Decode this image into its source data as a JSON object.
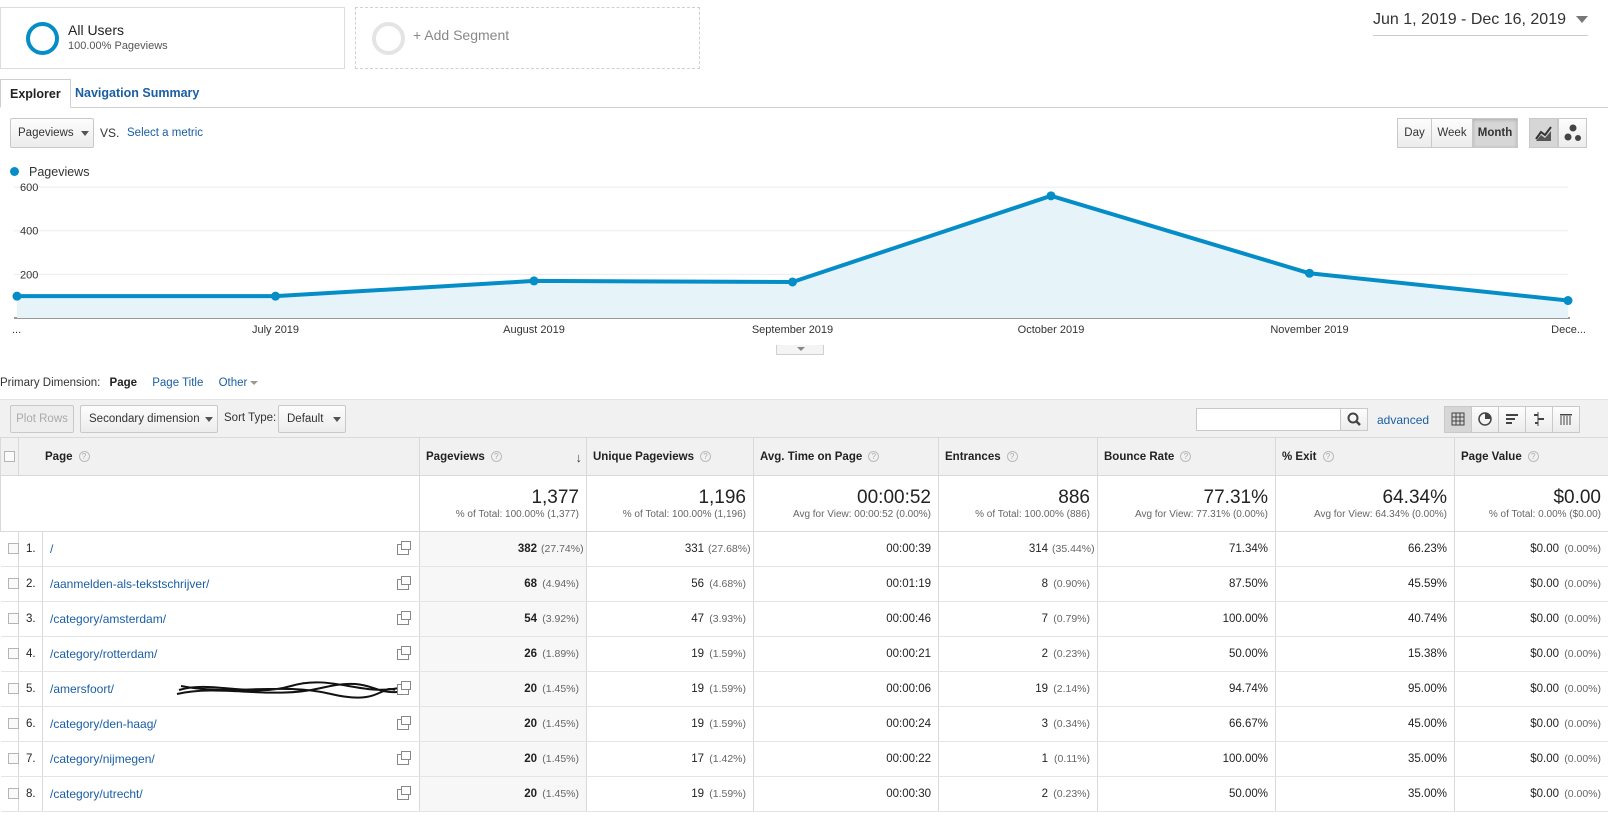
{
  "segments": {
    "all_users": {
      "title": "All Users",
      "subtitle": "100.00% Pageviews"
    },
    "add_segment": {
      "label": "+ Add Segment"
    }
  },
  "date_range": "Jun 1, 2019 - Dec 16, 2019",
  "tabs": [
    {
      "label": "Explorer",
      "active": true
    },
    {
      "label": "Navigation Summary",
      "active": false
    }
  ],
  "metric_selector": {
    "metric": "Pageviews",
    "vs_label": "VS.",
    "select_metric": "Select a metric"
  },
  "period_buttons": [
    {
      "label": "Day"
    },
    {
      "label": "Week"
    },
    {
      "label": "Month",
      "active": true
    }
  ],
  "chart_type_buttons": [
    {
      "icon": "line-chart-icon",
      "active": true
    },
    {
      "icon": "motion-chart-icon"
    }
  ],
  "chart_data": {
    "type": "area",
    "title": "",
    "legend": "Pageviews",
    "color": "#058dc7",
    "x_labels": [
      "...",
      "July 2019",
      "August 2019",
      "September 2019",
      "October 2019",
      "November 2019",
      "Dece..."
    ],
    "series": [
      {
        "name": "Pageviews",
        "values": [
          100,
          100,
          170,
          165,
          560,
          205,
          80
        ]
      }
    ],
    "y_ticks": [
      200,
      400,
      600
    ],
    "ylim": [
      0,
      605
    ],
    "grid": true
  },
  "primary_dimension": {
    "label": "Primary Dimension:",
    "selected": "Page",
    "options": [
      "Page Title",
      "Other"
    ]
  },
  "toolbar": {
    "plot_rows": "Plot Rows",
    "secondary_dimension": "Secondary dimension",
    "sort_label": "Sort Type:",
    "sort_value": "Default",
    "advanced": "advanced",
    "views": [
      "table-view-icon",
      "pie-view-icon",
      "performance-view-icon",
      "comparison-view-icon",
      "pivot-view-icon"
    ]
  },
  "table": {
    "columns": {
      "page": "Page",
      "pageviews": "Pageviews",
      "unique_pageviews": "Unique Pageviews",
      "avg_time": "Avg. Time on Page",
      "entrances": "Entrances",
      "bounce_rate": "Bounce Rate",
      "exit": "% Exit",
      "page_value": "Page Value"
    },
    "totals": {
      "pageviews": {
        "value": "1,377",
        "sub": "% of Total: 100.00% (1,377)"
      },
      "unique_pageviews": {
        "value": "1,196",
        "sub": "% of Total: 100.00% (1,196)"
      },
      "avg_time": {
        "value": "00:00:52",
        "sub": "Avg for View: 00:00:52 (0.00%)"
      },
      "entrances": {
        "value": "886",
        "sub": "% of Total: 100.00% (886)"
      },
      "bounce_rate": {
        "value": "77.31%",
        "sub": "Avg for View: 77.31% (0.00%)"
      },
      "exit": {
        "value": "64.34%",
        "sub": "Avg for View: 64.34% (0.00%)"
      },
      "page_value": {
        "value": "$0.00",
        "sub": "% of Total: 0.00% ($0.00)"
      }
    },
    "rows": [
      {
        "idx": "1.",
        "page": "/",
        "pv": "382",
        "pv_pct": "(27.74%)",
        "upv": "331",
        "upv_pct": "(27.68%)",
        "time": "00:00:39",
        "ent": "314",
        "ent_pct": "(35.44%)",
        "bounce": "71.34%",
        "exit": "66.23%",
        "value": "$0.00",
        "value_pct": "(0.00%)"
      },
      {
        "idx": "2.",
        "page": "/aanmelden-als-tekstschrijver/",
        "pv": "68",
        "pv_pct": "(4.94%)",
        "upv": "56",
        "upv_pct": "(4.68%)",
        "time": "00:01:19",
        "ent": "8",
        "ent_pct": "(0.90%)",
        "bounce": "87.50%",
        "exit": "45.59%",
        "value": "$0.00",
        "value_pct": "(0.00%)"
      },
      {
        "idx": "3.",
        "page": "/category/amsterdam/",
        "pv": "54",
        "pv_pct": "(3.92%)",
        "upv": "47",
        "upv_pct": "(3.93%)",
        "time": "00:00:46",
        "ent": "7",
        "ent_pct": "(0.79%)",
        "bounce": "100.00%",
        "exit": "40.74%",
        "value": "$0.00",
        "value_pct": "(0.00%)"
      },
      {
        "idx": "4.",
        "page": "/category/rotterdam/",
        "pv": "26",
        "pv_pct": "(1.89%)",
        "upv": "19",
        "upv_pct": "(1.59%)",
        "time": "00:00:21",
        "ent": "2",
        "ent_pct": "(0.23%)",
        "bounce": "50.00%",
        "exit": "15.38%",
        "value": "$0.00",
        "value_pct": "(0.00%)"
      },
      {
        "idx": "5.",
        "page": "/amersfoort/",
        "pv": "20",
        "pv_pct": "(1.45%)",
        "upv": "19",
        "upv_pct": "(1.59%)",
        "time": "00:00:06",
        "ent": "19",
        "ent_pct": "(2.14%)",
        "bounce": "94.74%",
        "exit": "95.00%",
        "value": "$0.00",
        "value_pct": "(0.00%)",
        "redacted": true
      },
      {
        "idx": "6.",
        "page": "/category/den-haag/",
        "pv": "20",
        "pv_pct": "(1.45%)",
        "upv": "19",
        "upv_pct": "(1.59%)",
        "time": "00:00:24",
        "ent": "3",
        "ent_pct": "(0.34%)",
        "bounce": "66.67%",
        "exit": "45.00%",
        "value": "$0.00",
        "value_pct": "(0.00%)"
      },
      {
        "idx": "7.",
        "page": "/category/nijmegen/",
        "pv": "20",
        "pv_pct": "(1.45%)",
        "upv": "17",
        "upv_pct": "(1.42%)",
        "time": "00:00:22",
        "ent": "1",
        "ent_pct": "(0.11%)",
        "bounce": "100.00%",
        "exit": "35.00%",
        "value": "$0.00",
        "value_pct": "(0.00%)"
      },
      {
        "idx": "8.",
        "page": "/category/utrecht/",
        "pv": "20",
        "pv_pct": "(1.45%)",
        "upv": "19",
        "upv_pct": "(1.59%)",
        "time": "00:00:30",
        "ent": "2",
        "ent_pct": "(0.23%)",
        "bounce": "50.00%",
        "exit": "35.00%",
        "value": "$0.00",
        "value_pct": "(0.00%)"
      }
    ]
  }
}
